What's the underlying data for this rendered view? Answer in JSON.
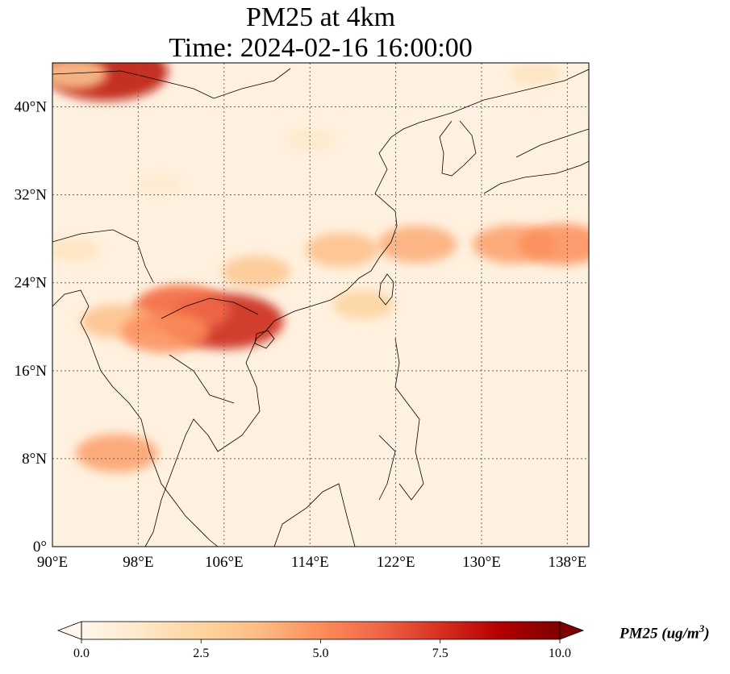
{
  "title": {
    "line1": "PM25 at 4km",
    "line2": "Time: 2024-02-16 16:00:00"
  },
  "map": {
    "extent": {
      "lon": [
        90,
        140
      ],
      "lat": [
        0,
        44
      ]
    },
    "lon_ticks": [
      {
        "value": 90,
        "label": "90°E"
      },
      {
        "value": 98,
        "label": "98°E"
      },
      {
        "value": 106,
        "label": "106°E"
      },
      {
        "value": 114,
        "label": "114°E"
      },
      {
        "value": 122,
        "label": "122°E"
      },
      {
        "value": 130,
        "label": "130°E"
      },
      {
        "value": 138,
        "label": "138°E"
      }
    ],
    "lat_ticks": [
      {
        "value": 0,
        "label": "0°"
      },
      {
        "value": 8,
        "label": "8°N"
      },
      {
        "value": 16,
        "label": "16°N"
      },
      {
        "value": 24,
        "label": "24°N"
      },
      {
        "value": 32,
        "label": "32°N"
      },
      {
        "value": 40,
        "label": "40°N"
      }
    ],
    "gridlines": true,
    "field_blobs": [
      {
        "lon": 133,
        "lat": 27.5,
        "value": 4.5
      },
      {
        "lon": 124,
        "lat": 27.5,
        "value": 4.2
      },
      {
        "lon": 137.5,
        "lat": 27.5,
        "value": 5.0
      },
      {
        "lon": 117,
        "lat": 27,
        "value": 3.6
      },
      {
        "lon": 109,
        "lat": 25,
        "value": 3.2
      },
      {
        "lon": 102,
        "lat": 22,
        "value": 4.5
      },
      {
        "lon": 106,
        "lat": 20.5,
        "value": 8.0
      },
      {
        "lon": 102,
        "lat": 21.5,
        "value": 6.0
      },
      {
        "lon": 96,
        "lat": 20.5,
        "value": 3.5
      },
      {
        "lon": 100.5,
        "lat": 19.5,
        "value": 5.0
      },
      {
        "lon": 95,
        "lat": 43.2,
        "value": 8.5
      },
      {
        "lon": 92,
        "lat": 43,
        "value": 3.0
      },
      {
        "lon": 96,
        "lat": 8.5,
        "value": 4.5
      },
      {
        "lon": 119,
        "lat": 22,
        "value": 2.5
      },
      {
        "lon": 135,
        "lat": 43,
        "value": 1.5
      },
      {
        "lon": 114,
        "lat": 37,
        "value": 1.2
      },
      {
        "lon": 100,
        "lat": 33,
        "value": 1.0
      },
      {
        "lon": 92,
        "lat": 27,
        "value": 1.5
      }
    ]
  },
  "colorbar": {
    "cmap": "OrRd",
    "min": 0.0,
    "max": 10.0,
    "extend": "both",
    "ticks": [
      {
        "value": 0,
        "label": "0.0"
      },
      {
        "value": 2.5,
        "label": "2.5"
      },
      {
        "value": 5,
        "label": "5.0"
      },
      {
        "value": 7.5,
        "label": "7.5"
      },
      {
        "value": 10,
        "label": "10.0"
      }
    ],
    "stops": [
      "#fff7ec",
      "#fee8c8",
      "#fdd49e",
      "#fdbb84",
      "#fc8d59",
      "#ef6548",
      "#d7301f",
      "#b30000",
      "#7f0000"
    ],
    "label": "PM25 (ug/m",
    "label_sup": "3",
    "label_close": ")"
  }
}
